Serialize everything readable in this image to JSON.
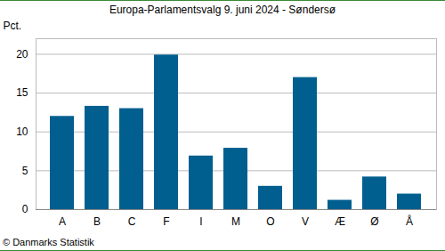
{
  "chart_data": {
    "type": "bar",
    "title": "Europa-Parlamentsvalg 9. juni 2024 - Søndersø",
    "y_label": "Pct.",
    "caption": "© Danmarks Statistik",
    "categories": [
      "A",
      "B",
      "C",
      "F",
      "I",
      "M",
      "O",
      "V",
      "Æ",
      "Ø",
      "Å"
    ],
    "values": [
      12.0,
      13.3,
      13.0,
      19.9,
      6.9,
      7.9,
      3.0,
      17.0,
      1.2,
      4.2,
      2.0
    ],
    "color": "#005f8f",
    "ylim": [
      0,
      22
    ],
    "yticks": [
      0,
      5,
      10,
      15,
      20
    ],
    "grid": true
  }
}
